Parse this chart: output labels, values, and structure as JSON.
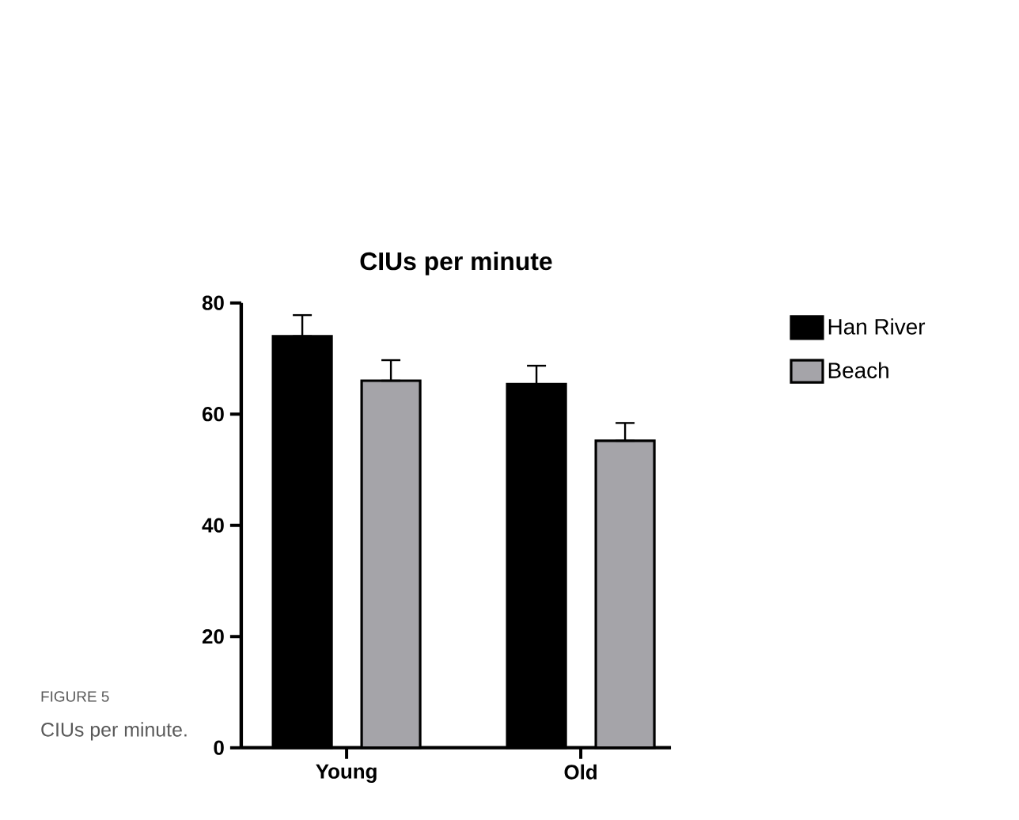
{
  "chart_data": {
    "type": "bar",
    "title": "CIUs per minute",
    "categories": [
      "Young",
      "Old"
    ],
    "series": [
      {
        "name": "Han River",
        "color": "#000000",
        "values": [
          74.0,
          65.4
        ],
        "errors": [
          [
            74.0,
            77.8
          ],
          [
            65.4,
            68.7
          ]
        ]
      },
      {
        "name": "Beach",
        "color": "#a5a4a9",
        "values": [
          66.0,
          55.2
        ],
        "errors": [
          [
            66.0,
            69.7
          ],
          [
            55.2,
            58.4
          ]
        ]
      }
    ],
    "ylim": [
      0,
      80
    ],
    "yticks": [
      0,
      20,
      40,
      60,
      80
    ],
    "legend": "top right",
    "grid": false,
    "annotations": [
      "FIGURE 5",
      "CIUs per minute."
    ]
  }
}
